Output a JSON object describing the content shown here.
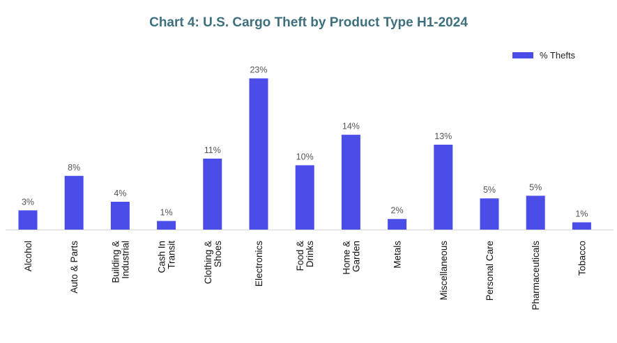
{
  "chart_data": {
    "type": "bar",
    "title": "Chart 4: U.S. Cargo Theft by Product Type H1-2024",
    "xlabel": "",
    "ylabel": "",
    "ylim": [
      0,
      25
    ],
    "grid": false,
    "legend_position": "top-right",
    "categories": [
      [
        "Alcohol"
      ],
      [
        "Auto & Parts"
      ],
      [
        "Building &",
        "Industrial"
      ],
      [
        "Cash In",
        "Transit"
      ],
      [
        "Clothing &",
        "Shoes"
      ],
      [
        "Electronics"
      ],
      [
        "Food &",
        "Drinks"
      ],
      [
        "Home &",
        "Garden"
      ],
      [
        "Metals"
      ],
      [
        "Miscellaneous"
      ],
      [
        "Personal Care"
      ],
      [
        "Pharmaceuticals"
      ],
      [
        "Tobacco"
      ]
    ],
    "series": [
      {
        "name": "% Thefts",
        "color": "#4b4de8",
        "values": [
          2.9,
          8.1,
          4.2,
          1.3,
          10.7,
          22.8,
          9.7,
          14.3,
          1.6,
          12.8,
          4.7,
          5.1,
          1.1
        ],
        "labels": [
          "3%",
          "8%",
          "4%",
          "1%",
          "11%",
          "23%",
          "10%",
          "14%",
          "2%",
          "13%",
          "5%",
          "5%",
          "1%"
        ]
      }
    ]
  }
}
